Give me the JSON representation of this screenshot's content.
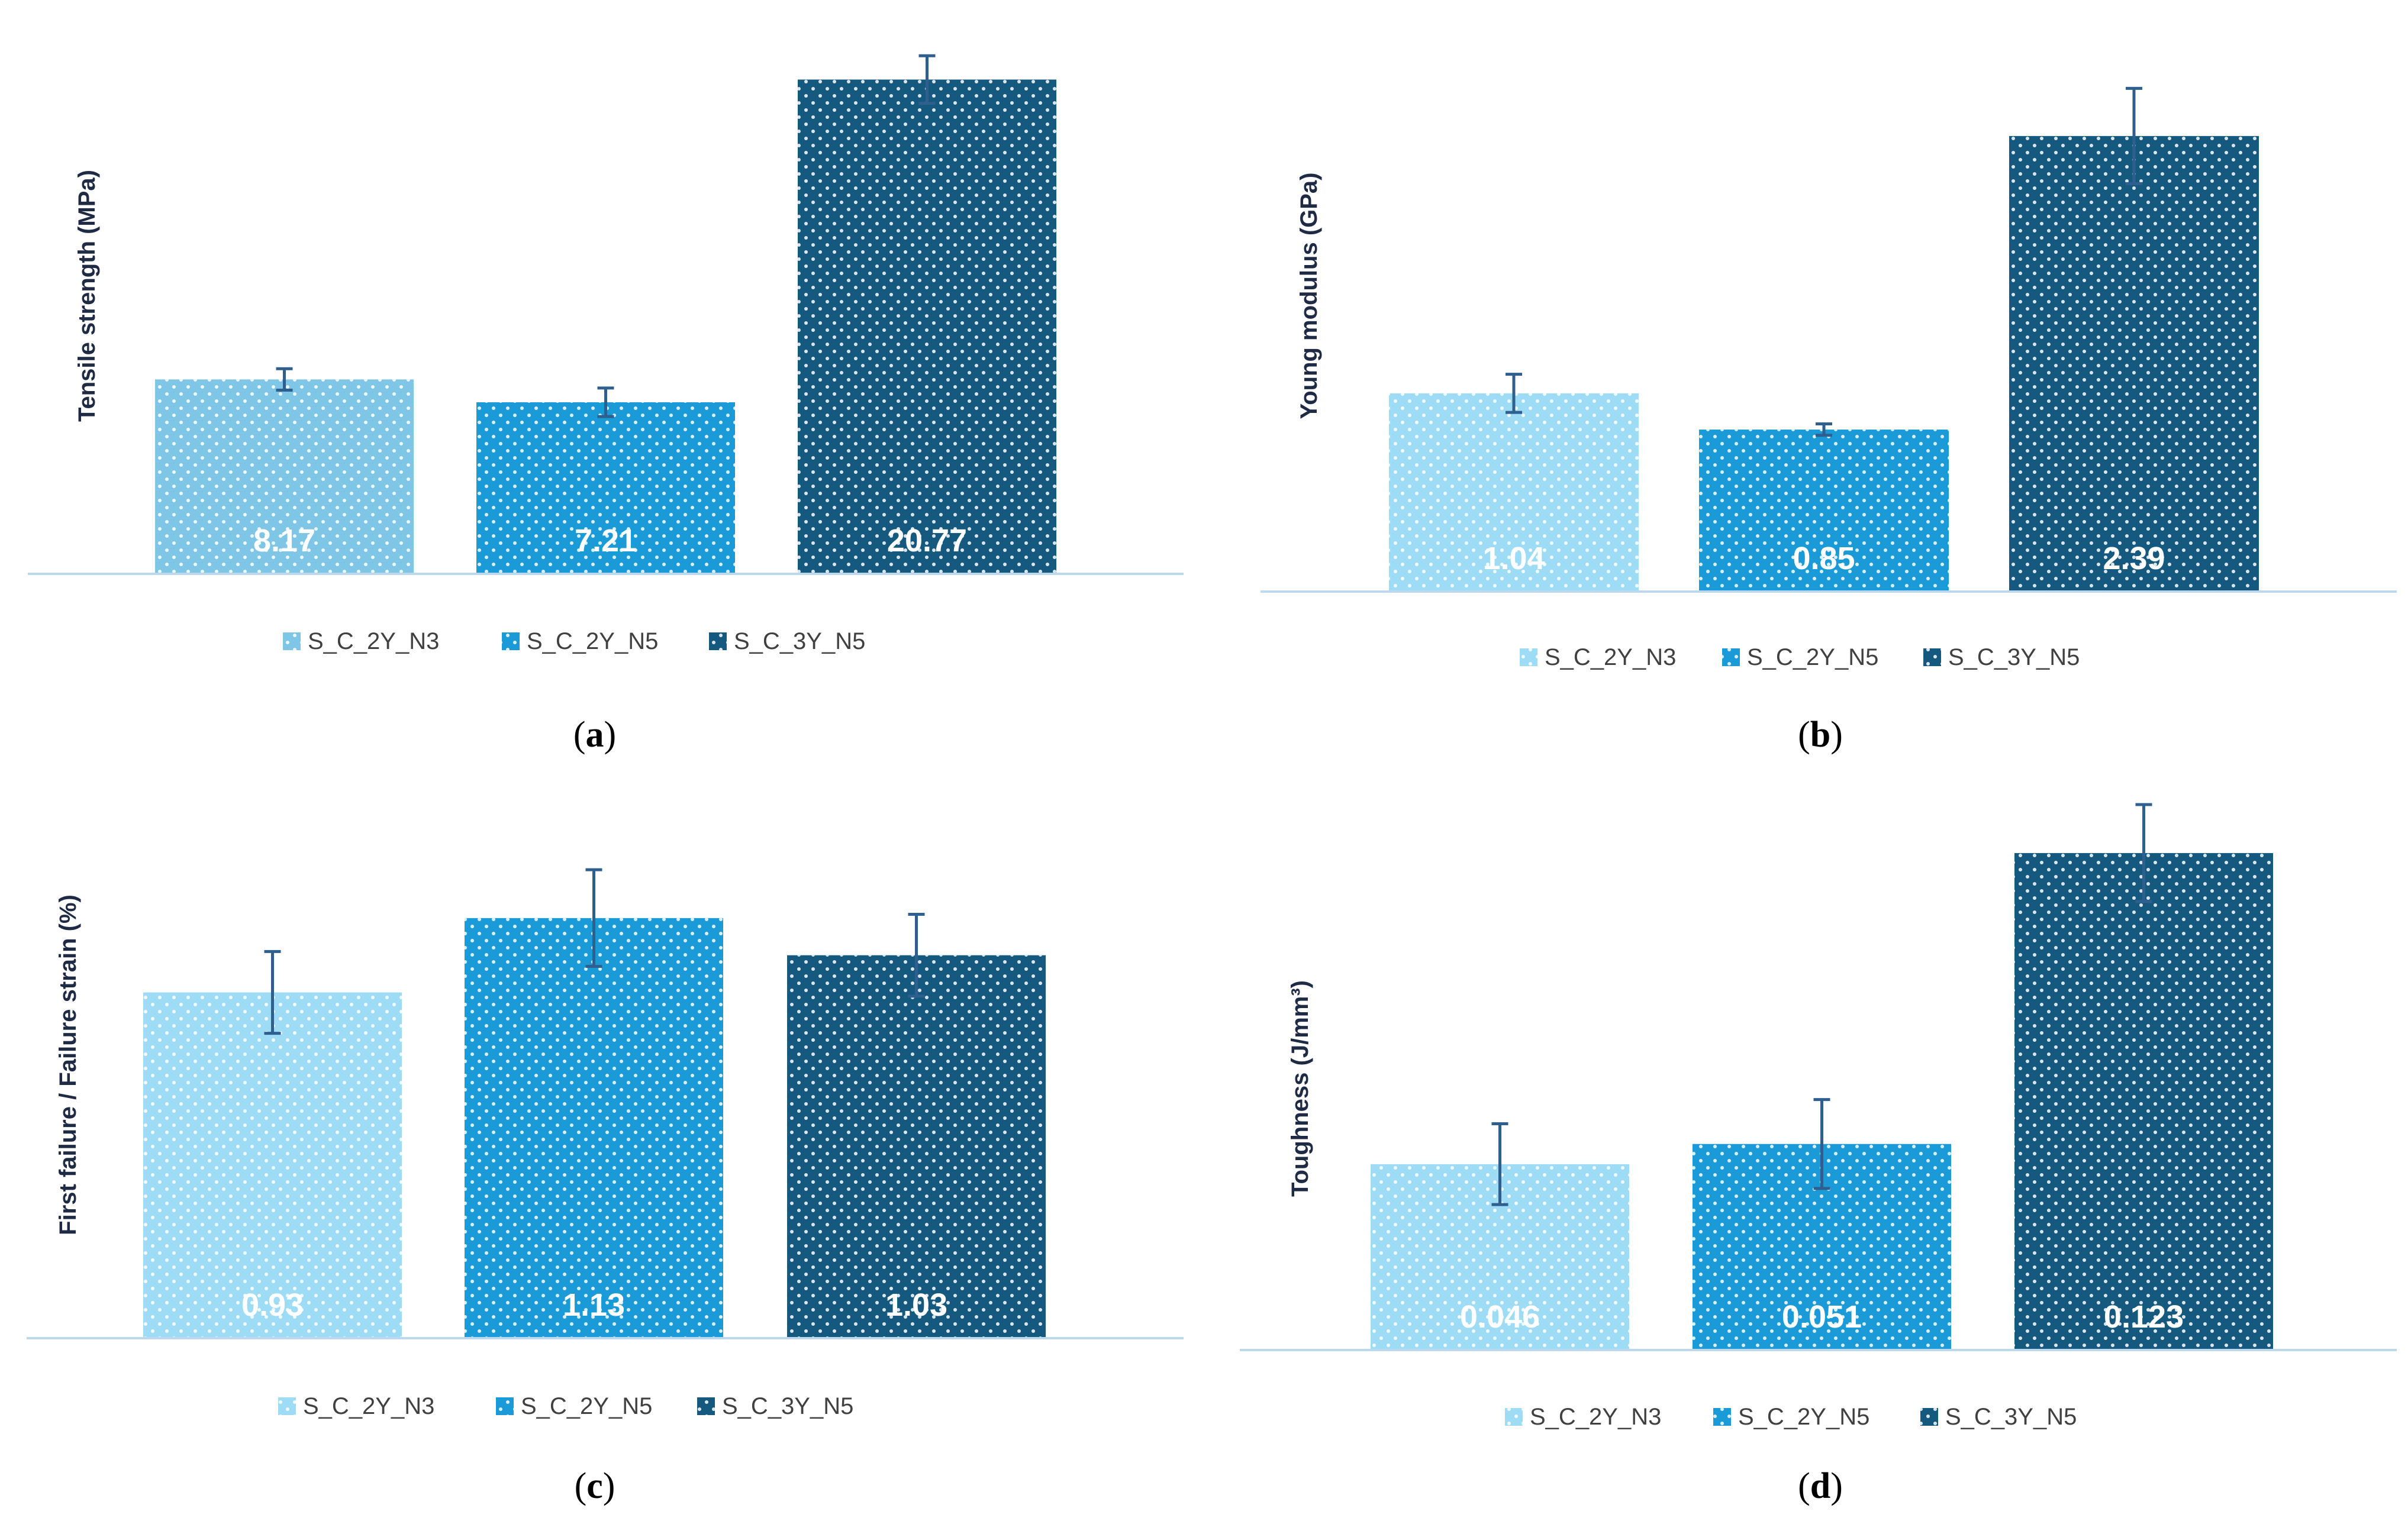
{
  "series_colors": [
    "#7fc6e6",
    "#1a9ad6",
    "#155a7e"
  ],
  "chart_data": [
    {
      "type": "bar",
      "panel": "a",
      "caption": "(a)",
      "caption_open": "(",
      "caption_letter": "a",
      "caption_close": ")",
      "ylabel": "Tensile strength (MPa)",
      "categories": [
        "S_C_2Y_N3",
        "S_C_2Y_N5",
        "S_C_3Y_N5"
      ],
      "values": [
        8.17,
        7.21,
        20.77
      ],
      "labels": [
        "8.17",
        "7.21",
        "20.77"
      ],
      "errors": [
        0.45,
        0.6,
        1.0
      ],
      "colors": [
        "#7fc6e6",
        "#1a9ad6",
        "#155a7e"
      ],
      "ylim": [
        0,
        22
      ],
      "legend": [
        "S_C_2Y_N3",
        "S_C_2Y_N5",
        "S_C_3Y_N5"
      ]
    },
    {
      "type": "bar",
      "panel": "b",
      "caption": "(b)",
      "caption_open": "(",
      "caption_letter": "b",
      "caption_close": ")",
      "ylabel": "Young modulus (GPa)",
      "categories": [
        "S_C_2Y_N3",
        "S_C_2Y_N5",
        "S_C_3Y_N5"
      ],
      "values": [
        1.04,
        0.85,
        2.39
      ],
      "labels": [
        "1.04",
        "0.85",
        "2.39"
      ],
      "errors": [
        0.1,
        0.03,
        0.25
      ],
      "colors": [
        "#9edcf5",
        "#1a9ad6",
        "#155a7e"
      ],
      "ylim": [
        0,
        2.7
      ],
      "legend": [
        "S_C_2Y_N3",
        "S_C_2Y_N5",
        "S_C_3Y_N5"
      ]
    },
    {
      "type": "bar",
      "panel": "c",
      "caption": "(c)",
      "caption_open": "(",
      "caption_letter": "c",
      "caption_close": ")",
      "ylabel": "First failure  / Failure strain (%)",
      "categories": [
        "S_C_2Y_N3",
        "S_C_2Y_N5",
        "S_C_3Y_N5"
      ],
      "values": [
        0.93,
        1.13,
        1.03
      ],
      "labels": [
        "0.93",
        "1.13",
        "1.03"
      ],
      "errors": [
        0.11,
        0.13,
        0.11
      ],
      "colors": [
        "#9edcf5",
        "#1a9ad6",
        "#155a7e"
      ],
      "ylim": [
        0,
        1.3
      ],
      "legend": [
        "S_C_2Y_N3",
        "S_C_2Y_N5",
        "S_C_3Y_N5"
      ]
    },
    {
      "type": "bar",
      "panel": "d",
      "caption": "(d)",
      "caption_open": "(",
      "caption_letter": "d",
      "caption_close": ")",
      "ylabel": "Toughness (J/mm³)",
      "categories": [
        "S_C_2Y_N3",
        "S_C_2Y_N5",
        "S_C_3Y_N5"
      ],
      "values": [
        0.046,
        0.051,
        0.123
      ],
      "labels": [
        "0.046",
        "0.051",
        "0.123"
      ],
      "errors": [
        0.01,
        0.011,
        0.012
      ],
      "colors": [
        "#9edcf5",
        "#1a9ad6",
        "#155a7e"
      ],
      "ylim": [
        0,
        0.135
      ],
      "legend": [
        "S_C_2Y_N3",
        "S_C_2Y_N5",
        "S_C_3Y_N5"
      ]
    }
  ]
}
